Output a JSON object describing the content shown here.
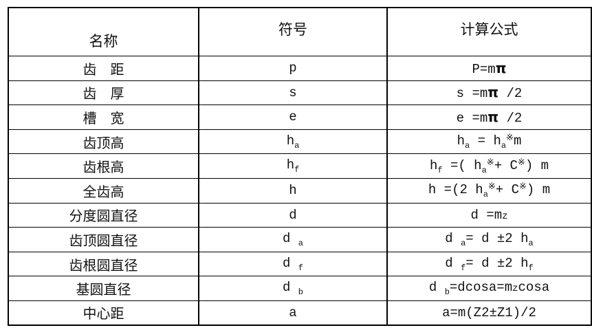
{
  "header": {
    "name": "名称",
    "symbol": "符号",
    "formula": "计算公式"
  },
  "rows": [
    {
      "name": "齿　距",
      "symbol": [
        {
          "t": "p"
        }
      ],
      "formula": [
        {
          "t": "P=m"
        },
        {
          "t": "π",
          "style": "pi"
        }
      ]
    },
    {
      "name": "齿　厚",
      "symbol": [
        {
          "t": "s"
        }
      ],
      "formula": [
        {
          "t": "s =m"
        },
        {
          "t": "π",
          "style": "pi"
        },
        {
          "t": " /2"
        }
      ]
    },
    {
      "name": "槽　宽",
      "symbol": [
        {
          "t": "e"
        }
      ],
      "formula": [
        {
          "t": "e =m"
        },
        {
          "t": "π",
          "style": "pi"
        },
        {
          "t": " /2"
        }
      ]
    },
    {
      "name": "齿顶高",
      "symbol": [
        {
          "t": "h"
        },
        {
          "t": "a",
          "style": "sub"
        }
      ],
      "formula": [
        {
          "t": "h"
        },
        {
          "t": "a",
          "style": "sub"
        },
        {
          "t": " = h"
        },
        {
          "t": "a",
          "style": "sub"
        },
        {
          "t": "※",
          "style": "sup"
        },
        {
          "t": "m"
        }
      ]
    },
    {
      "name": "齿根高",
      "symbol": [
        {
          "t": "h"
        },
        {
          "t": "f",
          "style": "sub"
        }
      ],
      "formula": [
        {
          "t": "h"
        },
        {
          "t": "f",
          "style": "sub"
        },
        {
          "t": " =( h"
        },
        {
          "t": "a",
          "style": "sub"
        },
        {
          "t": "※",
          "style": "sup"
        },
        {
          "t": "+ C"
        },
        {
          "t": "※",
          "style": "sup"
        },
        {
          "t": ") m"
        }
      ]
    },
    {
      "name": "全齿高",
      "symbol": [
        {
          "t": "h"
        }
      ],
      "formula": [
        {
          "t": "h =(2 h"
        },
        {
          "t": "a",
          "style": "sub"
        },
        {
          "t": "※",
          "style": "sup"
        },
        {
          "t": "+ C"
        },
        {
          "t": "※",
          "style": "sup"
        },
        {
          "t": ") m"
        }
      ]
    },
    {
      "name": "分度圆直径",
      "symbol": [
        {
          "t": "d"
        }
      ],
      "formula": [
        {
          "t": "d =m"
        },
        {
          "t": "z",
          "style": "sm"
        }
      ]
    },
    {
      "name": "齿顶圆直径",
      "symbol": [
        {
          "t": "d "
        },
        {
          "t": "a",
          "style": "sub"
        }
      ],
      "formula": [
        {
          "t": "d "
        },
        {
          "t": "a",
          "style": "sub"
        },
        {
          "t": "= d ±2 h"
        },
        {
          "t": "a",
          "style": "sub"
        }
      ]
    },
    {
      "name": "齿根圆直径",
      "symbol": [
        {
          "t": "d "
        },
        {
          "t": "f",
          "style": "sub"
        }
      ],
      "formula": [
        {
          "t": "d "
        },
        {
          "t": "f",
          "style": "sub"
        },
        {
          "t": "= d ±2 h"
        },
        {
          "t": "f",
          "style": "sub"
        }
      ]
    },
    {
      "name": "基圆直径",
      "symbol": [
        {
          "t": "d "
        },
        {
          "t": "b",
          "style": "sub"
        }
      ],
      "formula": [
        {
          "t": "d "
        },
        {
          "t": "b",
          "style": "sub"
        },
        {
          "t": "=dcosa=m"
        },
        {
          "t": "z",
          "style": "sm"
        },
        {
          "t": "cosa"
        }
      ]
    },
    {
      "name": "中心距",
      "symbol": [
        {
          "t": "a"
        }
      ],
      "formula": [
        {
          "t": "a=m(Z2±Z1)/2"
        }
      ]
    }
  ],
  "colors": {
    "border": "#000000",
    "text": "#111111",
    "background": "#ffffff"
  }
}
